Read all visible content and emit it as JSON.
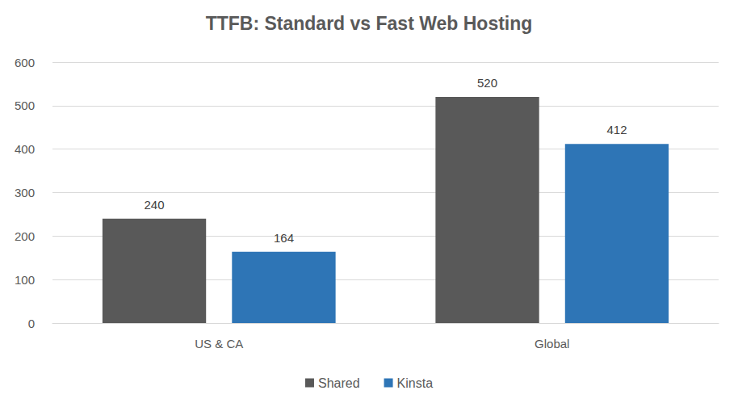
{
  "chart_data": {
    "type": "bar",
    "title": "TTFB: Standard vs Fast Web Hosting",
    "categories": [
      "US & CA",
      "Global"
    ],
    "series": [
      {
        "name": "Shared",
        "color": "#595959",
        "values": [
          240,
          520
        ]
      },
      {
        "name": "Kinsta",
        "color": "#2e75b6",
        "values": [
          164,
          412
        ]
      }
    ],
    "ylim": [
      0,
      600
    ],
    "yticks": [
      0,
      100,
      200,
      300,
      400,
      500,
      600
    ],
    "grid": true,
    "legend": "bottom",
    "data_labels": true
  }
}
